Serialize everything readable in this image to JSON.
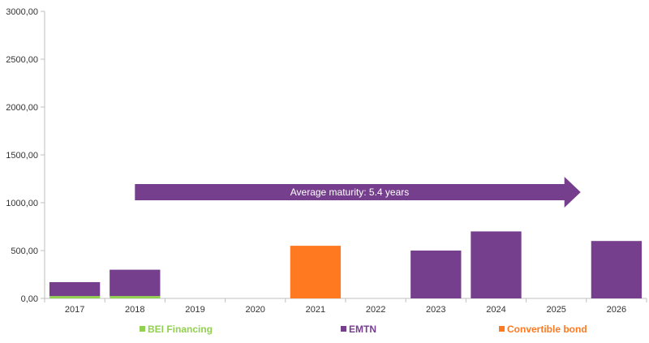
{
  "chart_data": {
    "type": "bar",
    "stacked": true,
    "categories": [
      "2017",
      "2018",
      "2019",
      "2020",
      "2021",
      "2022",
      "2023",
      "2024",
      "2025",
      "2026"
    ],
    "series": [
      {
        "name": "BEI Financing",
        "color": "#92d050",
        "values": [
          25,
          25,
          0,
          0,
          0,
          0,
          0,
          0,
          0,
          0
        ]
      },
      {
        "name": "EMTN",
        "color": "#763f8d",
        "values": [
          145,
          275,
          0,
          0,
          0,
          0,
          500,
          700,
          0,
          600
        ]
      },
      {
        "name": "Convertible bond",
        "color": "#ff7920",
        "values": [
          0,
          0,
          0,
          0,
          550,
          0,
          0,
          0,
          0,
          0
        ]
      }
    ],
    "y_ticks": [
      "0,00",
      "500,00",
      "1000,00",
      "1500,00",
      "2000,00",
      "2500,00",
      "3000,00"
    ],
    "ylim": [
      0,
      3000
    ],
    "legend_position": "bottom",
    "grid": false,
    "annotation": {
      "text": "Average maturity: 5.4 years",
      "color": "#763f8d",
      "from_category": "2018",
      "to_category": "2025"
    }
  }
}
